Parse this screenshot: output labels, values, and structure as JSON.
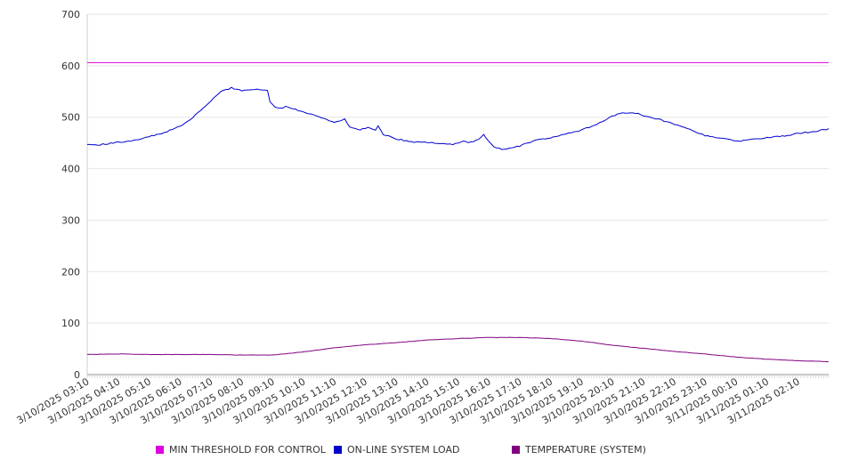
{
  "chart_data": {
    "type": "line",
    "title": "",
    "xlabel": "",
    "ylabel": "",
    "ylim": [
      0,
      700
    ],
    "yticks": [
      "0",
      "100",
      "200",
      "300",
      "400",
      "500",
      "600",
      "700"
    ],
    "grid": "horizontal",
    "legend_position": "bottom",
    "x_range": [
      "3/10/2025 03:10",
      "3/11/2025 03:10"
    ],
    "x_step_minutes": 5,
    "xtick_labels": [
      "3/10/2025 03:10",
      "3/10/2025 04:10",
      "3/10/2025 05:10",
      "3/10/2025 06:10",
      "3/10/2025 07:10",
      "3/10/2025 08:10",
      "3/10/2025 09:10",
      "3/10/2025 10:10",
      "3/10/2025 11:10",
      "3/10/2025 12:10",
      "3/10/2025 13:10",
      "3/10/2025 14:10",
      "3/10/2025 15:10",
      "3/10/2025 16:10",
      "3/10/2025 17:10",
      "3/10/2025 18:10",
      "3/10/2025 19:10",
      "3/10/2025 20:10",
      "3/10/2025 21:10",
      "3/10/2025 22:10",
      "3/10/2025 23:10",
      "3/11/2025 00:10",
      "3/11/2025 01:10",
      "3/11/2025 02:10"
    ],
    "series": [
      {
        "name": "MIN THRESHOLD FOR CONTROL",
        "color": "#dd00dd",
        "anchors": [
          [
            "3/10/2025 03:10",
            606
          ],
          [
            "3/11/2025 03:10",
            606
          ]
        ]
      },
      {
        "name": "ON-LINE SYSTEM LOAD",
        "color": "#0000cc",
        "anchors": [
          [
            "3/10/2025 03:10",
            447
          ],
          [
            "3/10/2025 03:30",
            446
          ],
          [
            "3/10/2025 04:10",
            451
          ],
          [
            "3/10/2025 04:40",
            455
          ],
          [
            "3/10/2025 05:10",
            462
          ],
          [
            "3/10/2025 05:40",
            470
          ],
          [
            "3/10/2025 06:10",
            482
          ],
          [
            "3/10/2025 06:30",
            495
          ],
          [
            "3/10/2025 07:00",
            522
          ],
          [
            "3/10/2025 07:30",
            550
          ],
          [
            "3/10/2025 07:50",
            557
          ],
          [
            "3/10/2025 08:10",
            552
          ],
          [
            "3/10/2025 08:30",
            554
          ],
          [
            "3/10/2025 08:50",
            553
          ],
          [
            "3/10/2025 09:00",
            552
          ],
          [
            "3/10/2025 09:05",
            530
          ],
          [
            "3/10/2025 09:15",
            519
          ],
          [
            "3/10/2025 09:30",
            518
          ],
          [
            "3/10/2025 09:35",
            522
          ],
          [
            "3/10/2025 10:00",
            513
          ],
          [
            "3/10/2025 10:30",
            505
          ],
          [
            "3/10/2025 11:10",
            490
          ],
          [
            "3/10/2025 11:20",
            493
          ],
          [
            "3/10/2025 11:30",
            496
          ],
          [
            "3/10/2025 11:40",
            480
          ],
          [
            "3/10/2025 12:00",
            476
          ],
          [
            "3/10/2025 12:15",
            480
          ],
          [
            "3/10/2025 12:30",
            474
          ],
          [
            "3/10/2025 12:35",
            483
          ],
          [
            "3/10/2025 12:45",
            467
          ],
          [
            "3/10/2025 13:10",
            458
          ],
          [
            "3/10/2025 13:40",
            452
          ],
          [
            "3/10/2025 14:10",
            451
          ],
          [
            "3/10/2025 14:40",
            449
          ],
          [
            "3/10/2025 15:00",
            447
          ],
          [
            "3/10/2025 15:20",
            453
          ],
          [
            "3/10/2025 15:35",
            451
          ],
          [
            "3/10/2025 15:50",
            457
          ],
          [
            "3/10/2025 16:00",
            466
          ],
          [
            "3/10/2025 16:05",
            458
          ],
          [
            "3/10/2025 16:20",
            442
          ],
          [
            "3/10/2025 16:40",
            437
          ],
          [
            "3/10/2025 17:10",
            444
          ],
          [
            "3/10/2025 17:40",
            455
          ],
          [
            "3/10/2025 18:10",
            460
          ],
          [
            "3/10/2025 18:40",
            467
          ],
          [
            "3/10/2025 19:10",
            475
          ],
          [
            "3/10/2025 19:40",
            486
          ],
          [
            "3/10/2025 20:10",
            503
          ],
          [
            "3/10/2025 20:30",
            508
          ],
          [
            "3/10/2025 21:00",
            507
          ],
          [
            "3/10/2025 21:10",
            502
          ],
          [
            "3/10/2025 21:40",
            496
          ],
          [
            "3/10/2025 22:10",
            486
          ],
          [
            "3/10/2025 22:40",
            476
          ],
          [
            "3/10/2025 23:10",
            464
          ],
          [
            "3/10/2025 23:40",
            460
          ],
          [
            "3/11/2025 00:10",
            453
          ],
          [
            "3/11/2025 00:40",
            457
          ],
          [
            "3/11/2025 01:10",
            460
          ],
          [
            "3/11/2025 01:40",
            463
          ],
          [
            "3/11/2025 02:10",
            468
          ],
          [
            "3/11/2025 02:40",
            472
          ],
          [
            "3/11/2025 03:10",
            477
          ]
        ]
      },
      {
        "name": "TEMPERATURE (SYSTEM)",
        "color": "#800080",
        "anchors": [
          [
            "3/10/2025 03:10",
            39
          ],
          [
            "3/10/2025 04:10",
            40
          ],
          [
            "3/10/2025 05:10",
            39
          ],
          [
            "3/10/2025 06:10",
            39
          ],
          [
            "3/10/2025 07:10",
            39
          ],
          [
            "3/10/2025 08:10",
            38
          ],
          [
            "3/10/2025 09:10",
            38
          ],
          [
            "3/10/2025 10:10",
            44
          ],
          [
            "3/10/2025 11:10",
            52
          ],
          [
            "3/10/2025 12:10",
            58
          ],
          [
            "3/10/2025 13:10",
            62
          ],
          [
            "3/10/2025 14:10",
            67
          ],
          [
            "3/10/2025 15:10",
            70
          ],
          [
            "3/10/2025 16:10",
            72
          ],
          [
            "3/10/2025 17:10",
            72
          ],
          [
            "3/10/2025 18:10",
            70
          ],
          [
            "3/10/2025 19:10",
            65
          ],
          [
            "3/10/2025 20:10",
            57
          ],
          [
            "3/10/2025 21:10",
            51
          ],
          [
            "3/10/2025 22:10",
            45
          ],
          [
            "3/10/2025 23:10",
            40
          ],
          [
            "3/11/2025 00:10",
            34
          ],
          [
            "3/11/2025 01:10",
            30
          ],
          [
            "3/11/2025 02:10",
            27
          ],
          [
            "3/11/2025 03:10",
            25
          ]
        ]
      }
    ]
  }
}
